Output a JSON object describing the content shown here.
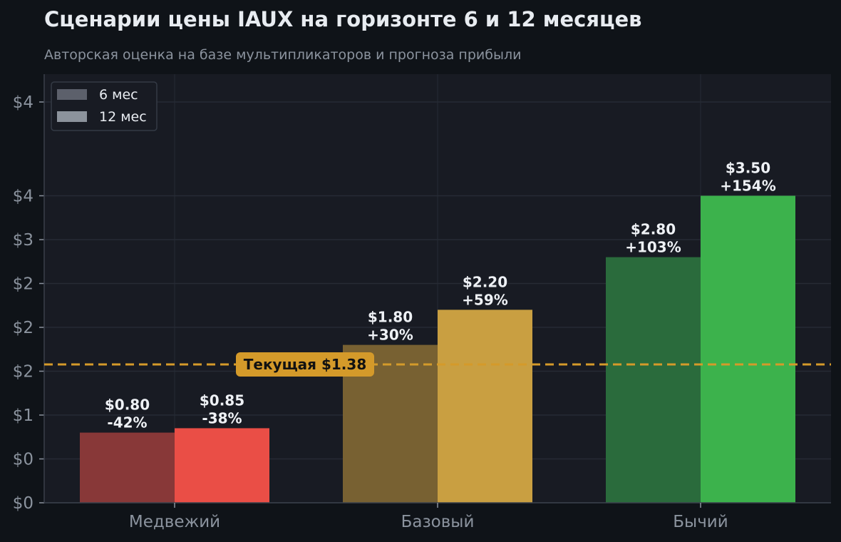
{
  "title": "Сценарии цены IAUX на горизонте 6 и 12 месяцев",
  "subtitle": "Авторская оценка на базе мультипликаторов и прогноза прибыли",
  "chart_data": {
    "type": "bar",
    "categories": [
      "Медвежий",
      "Базовый",
      "Бычий"
    ],
    "series": [
      {
        "name": "6 мес",
        "values": [
          0.8,
          1.8,
          2.8
        ],
        "labels": [
          "-42%",
          "+30%",
          "+103%"
        ],
        "value_labels": [
          "$0.80",
          "$1.80",
          "$2.80"
        ]
      },
      {
        "name": "12 мес",
        "values": [
          0.85,
          2.2,
          3.5
        ],
        "labels": [
          "-38%",
          "+59%",
          "+154%"
        ],
        "value_labels": [
          "$0.85",
          "$2.20",
          "$3.50"
        ]
      }
    ],
    "reference_line": {
      "value": 1.38,
      "label": "Текущая $1.38"
    },
    "ytick_values": [
      0.0,
      0.5,
      1.0,
      1.5,
      2.0,
      2.5,
      3.0,
      3.5,
      4.0
    ],
    "ytick_labels": [
      "$0",
      "$0",
      "$1",
      "$2",
      "$2",
      "$2",
      "$3",
      "$4",
      "$4"
    ],
    "ylim": [
      0,
      4.0
    ],
    "grid": true,
    "legend_position": "top-left",
    "colors": {
      "background": "#0f1318",
      "plot_bg": "#181b23",
      "grid": "#262b35",
      "ref_line": "#d49a2a",
      "legend_6": "#5c606b",
      "legend_12": "#8c939c",
      "bars_6": [
        "#883838",
        "#786132",
        "#2a6b3c"
      ],
      "bars_12": [
        "#ea4e46",
        "#c99f41",
        "#3cb24c"
      ]
    }
  }
}
